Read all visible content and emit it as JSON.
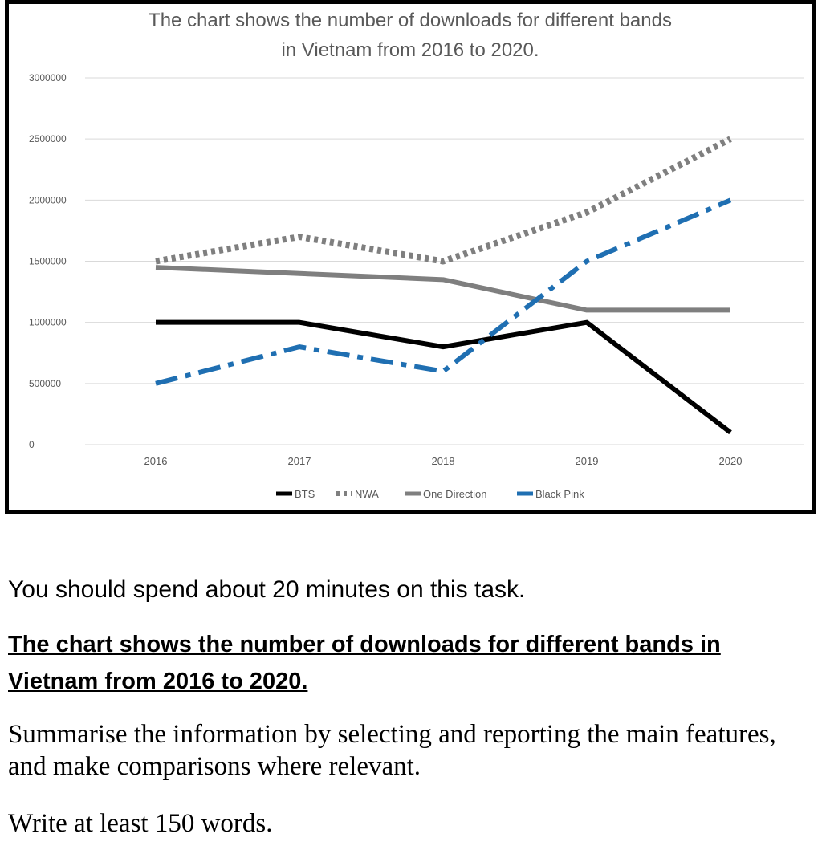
{
  "chart_data": {
    "type": "line",
    "title": "The chart shows the number of downloads for different bands\nin Vietnam from 2016 to 2020.",
    "xlabel": "",
    "ylabel": "",
    "categories": [
      "2016",
      "2017",
      "2018",
      "2019",
      "2020"
    ],
    "ylim": [
      0,
      3000000
    ],
    "yticks": [
      0,
      500000,
      1000000,
      1500000,
      2000000,
      2500000,
      3000000
    ],
    "grid": true,
    "legend_position": "bottom",
    "series": [
      {
        "name": "BTS",
        "values": [
          1000000,
          1000000,
          800000,
          1000000,
          100000
        ],
        "color": "#000000",
        "style": "solid"
      },
      {
        "name": "NWA",
        "values": [
          1500000,
          1700000,
          1500000,
          1900000,
          2500000
        ],
        "color": "#7f7f7f",
        "style": "dotted"
      },
      {
        "name": "One Direction",
        "values": [
          1450000,
          1400000,
          1350000,
          1100000,
          1100000
        ],
        "color": "#7f7f7f",
        "style": "solid"
      },
      {
        "name": "Black Pink",
        "values": [
          500000,
          800000,
          600000,
          1500000,
          2000000
        ],
        "color": "#1f6fb2",
        "style": "dashdot"
      }
    ]
  },
  "task": {
    "time": "You should spend about 20 minutes on this task.",
    "title": "The chart shows the number of downloads for different bands in Vietnam from 2016 to 2020.",
    "instruction": "Summarise the information by selecting and reporting the main features, and make comparisons where relevant.",
    "words": "Write at least 150 words."
  }
}
